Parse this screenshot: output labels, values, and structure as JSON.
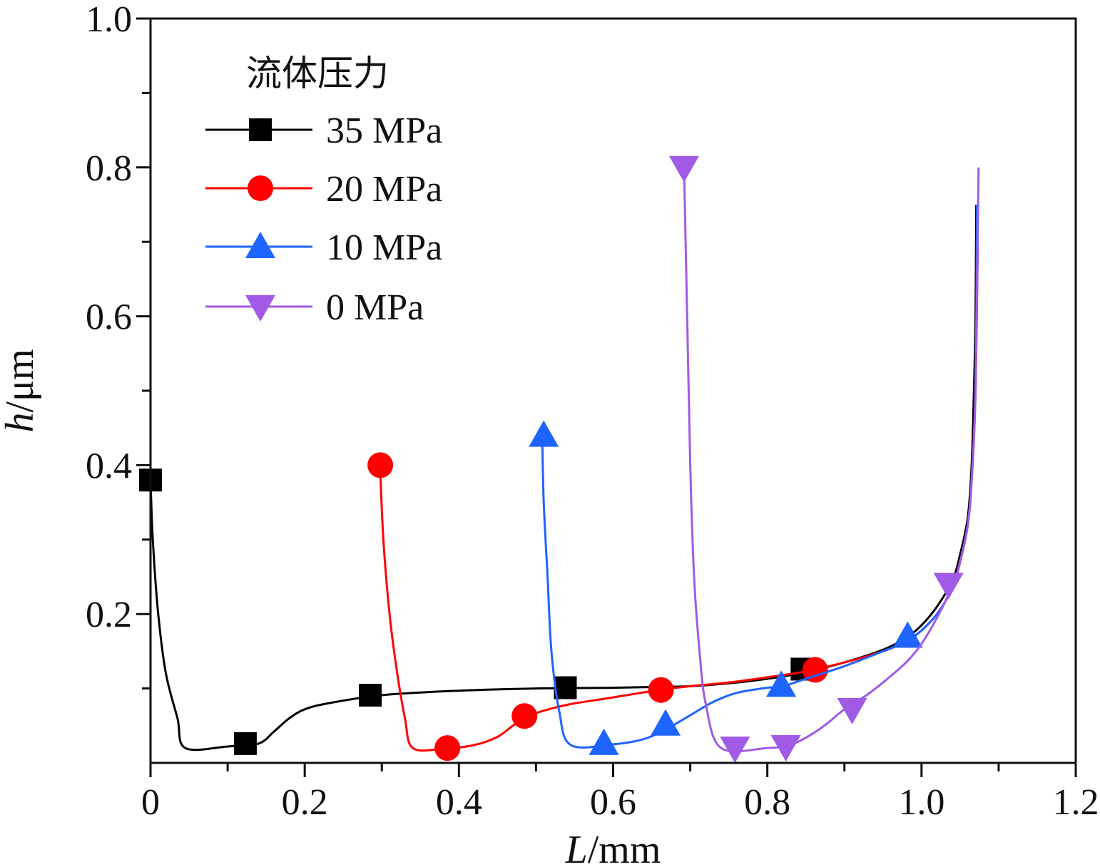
{
  "chart_data": {
    "type": "line",
    "title": "",
    "xlabel": "L/mm",
    "xlabel_var": "L",
    "xlabel_unit": "/mm",
    "ylabel": "h/μm",
    "ylabel_var": "h",
    "ylabel_unit": "/μm",
    "xlim": [
      0,
      1.2
    ],
    "ylim": [
      0,
      1.0
    ],
    "x_ticks": [
      0,
      0.2,
      0.4,
      0.6,
      0.8,
      1.0,
      1.2
    ],
    "x_tick_labels": [
      "0",
      "0.2",
      "0.4",
      "0.6",
      "0.8",
      "1.0",
      "1.2"
    ],
    "y_ticks": [
      0.2,
      0.4,
      0.6,
      0.8,
      1.0
    ],
    "y_tick_labels": [
      "0.2",
      "0.4",
      "0.6",
      "0.8",
      "1.0"
    ],
    "grid": false,
    "legend_title": "流体压力",
    "legend_position": "top-left",
    "series": [
      {
        "name": "35 MPa",
        "color": "#000000",
        "marker": "square",
        "x": [
          0.0,
          0.003,
          0.01,
          0.02,
          0.035,
          0.045,
          0.1,
          0.14,
          0.16,
          0.18,
          0.2,
          0.23,
          0.3,
          0.4,
          0.5,
          0.6,
          0.65,
          0.7,
          0.75,
          0.8,
          0.85,
          0.9,
          0.95,
          0.98,
          1.0,
          1.02,
          1.04,
          1.05,
          1.06,
          1.065,
          1.068,
          1.07,
          1.071
        ],
        "y": [
          0.38,
          0.3,
          0.2,
          0.12,
          0.06,
          0.02,
          0.022,
          0.026,
          0.042,
          0.06,
          0.072,
          0.08,
          0.091,
          0.097,
          0.1,
          0.101,
          0.102,
          0.103,
          0.107,
          0.113,
          0.122,
          0.135,
          0.152,
          0.168,
          0.185,
          0.21,
          0.245,
          0.28,
          0.33,
          0.4,
          0.5,
          0.6,
          0.75
        ],
        "marker_x": [
          0.0,
          0.123,
          0.285,
          0.538,
          0.845
        ],
        "marker_y": [
          0.38,
          0.026,
          0.091,
          0.101,
          0.126
        ]
      },
      {
        "name": "20 MPa",
        "color": "#ff0000",
        "marker": "circle",
        "x": [
          0.298,
          0.302,
          0.31,
          0.32,
          0.33,
          0.34,
          0.38,
          0.42,
          0.45,
          0.47,
          0.49,
          0.52,
          0.55,
          0.6,
          0.66,
          0.7,
          0.75,
          0.8,
          0.85,
          0.9,
          0.95,
          0.98,
          1.0,
          1.02,
          1.04,
          1.05,
          1.06,
          1.065,
          1.07,
          1.073
        ],
        "y": [
          0.39,
          0.3,
          0.2,
          0.12,
          0.06,
          0.02,
          0.019,
          0.024,
          0.035,
          0.05,
          0.063,
          0.073,
          0.08,
          0.088,
          0.098,
          0.103,
          0.108,
          0.115,
          0.123,
          0.135,
          0.15,
          0.163,
          0.178,
          0.2,
          0.235,
          0.27,
          0.32,
          0.38,
          0.5,
          0.7
        ],
        "marker_x": [
          0.298,
          0.385,
          0.485,
          0.662,
          0.862
        ],
        "marker_y": [
          0.4,
          0.02,
          0.063,
          0.098,
          0.125
        ]
      },
      {
        "name": "10 MPa",
        "color": "#1e64ff",
        "marker": "triangle-up",
        "x": [
          0.508,
          0.51,
          0.515,
          0.52,
          0.53,
          0.545,
          0.6,
          0.64,
          0.67,
          0.7,
          0.73,
          0.76,
          0.8,
          0.82,
          0.85,
          0.9,
          0.95,
          0.98,
          1.0,
          1.02,
          1.04,
          1.05,
          1.06,
          1.065,
          1.07,
          1.072
        ],
        "y": [
          0.44,
          0.35,
          0.25,
          0.15,
          0.07,
          0.024,
          0.025,
          0.032,
          0.046,
          0.064,
          0.082,
          0.094,
          0.101,
          0.103,
          0.113,
          0.13,
          0.15,
          0.163,
          0.178,
          0.2,
          0.235,
          0.27,
          0.32,
          0.38,
          0.5,
          0.75
        ],
        "marker_x": [
          0.51,
          0.588,
          0.668,
          0.818,
          0.982
        ],
        "marker_y": [
          0.44,
          0.026,
          0.052,
          0.104,
          0.17
        ]
      },
      {
        "name": "0 MPa",
        "color": "#a05ae6",
        "marker": "triangle-down",
        "x": [
          0.692,
          0.696,
          0.7,
          0.705,
          0.712,
          0.72,
          0.74,
          0.8,
          0.83,
          0.86,
          0.88,
          0.9,
          0.93,
          0.95,
          0.98,
          1.0,
          1.02,
          1.04,
          1.05,
          1.06,
          1.065,
          1.07,
          1.074
        ],
        "y": [
          0.8,
          0.6,
          0.4,
          0.25,
          0.15,
          0.08,
          0.02,
          0.02,
          0.024,
          0.04,
          0.055,
          0.072,
          0.092,
          0.108,
          0.135,
          0.16,
          0.195,
          0.238,
          0.27,
          0.32,
          0.38,
          0.5,
          0.8
        ],
        "marker_x": [
          0.692,
          0.758,
          0.824,
          0.91,
          1.035
        ],
        "marker_y": [
          0.8,
          0.02,
          0.022,
          0.072,
          0.24
        ]
      }
    ]
  }
}
